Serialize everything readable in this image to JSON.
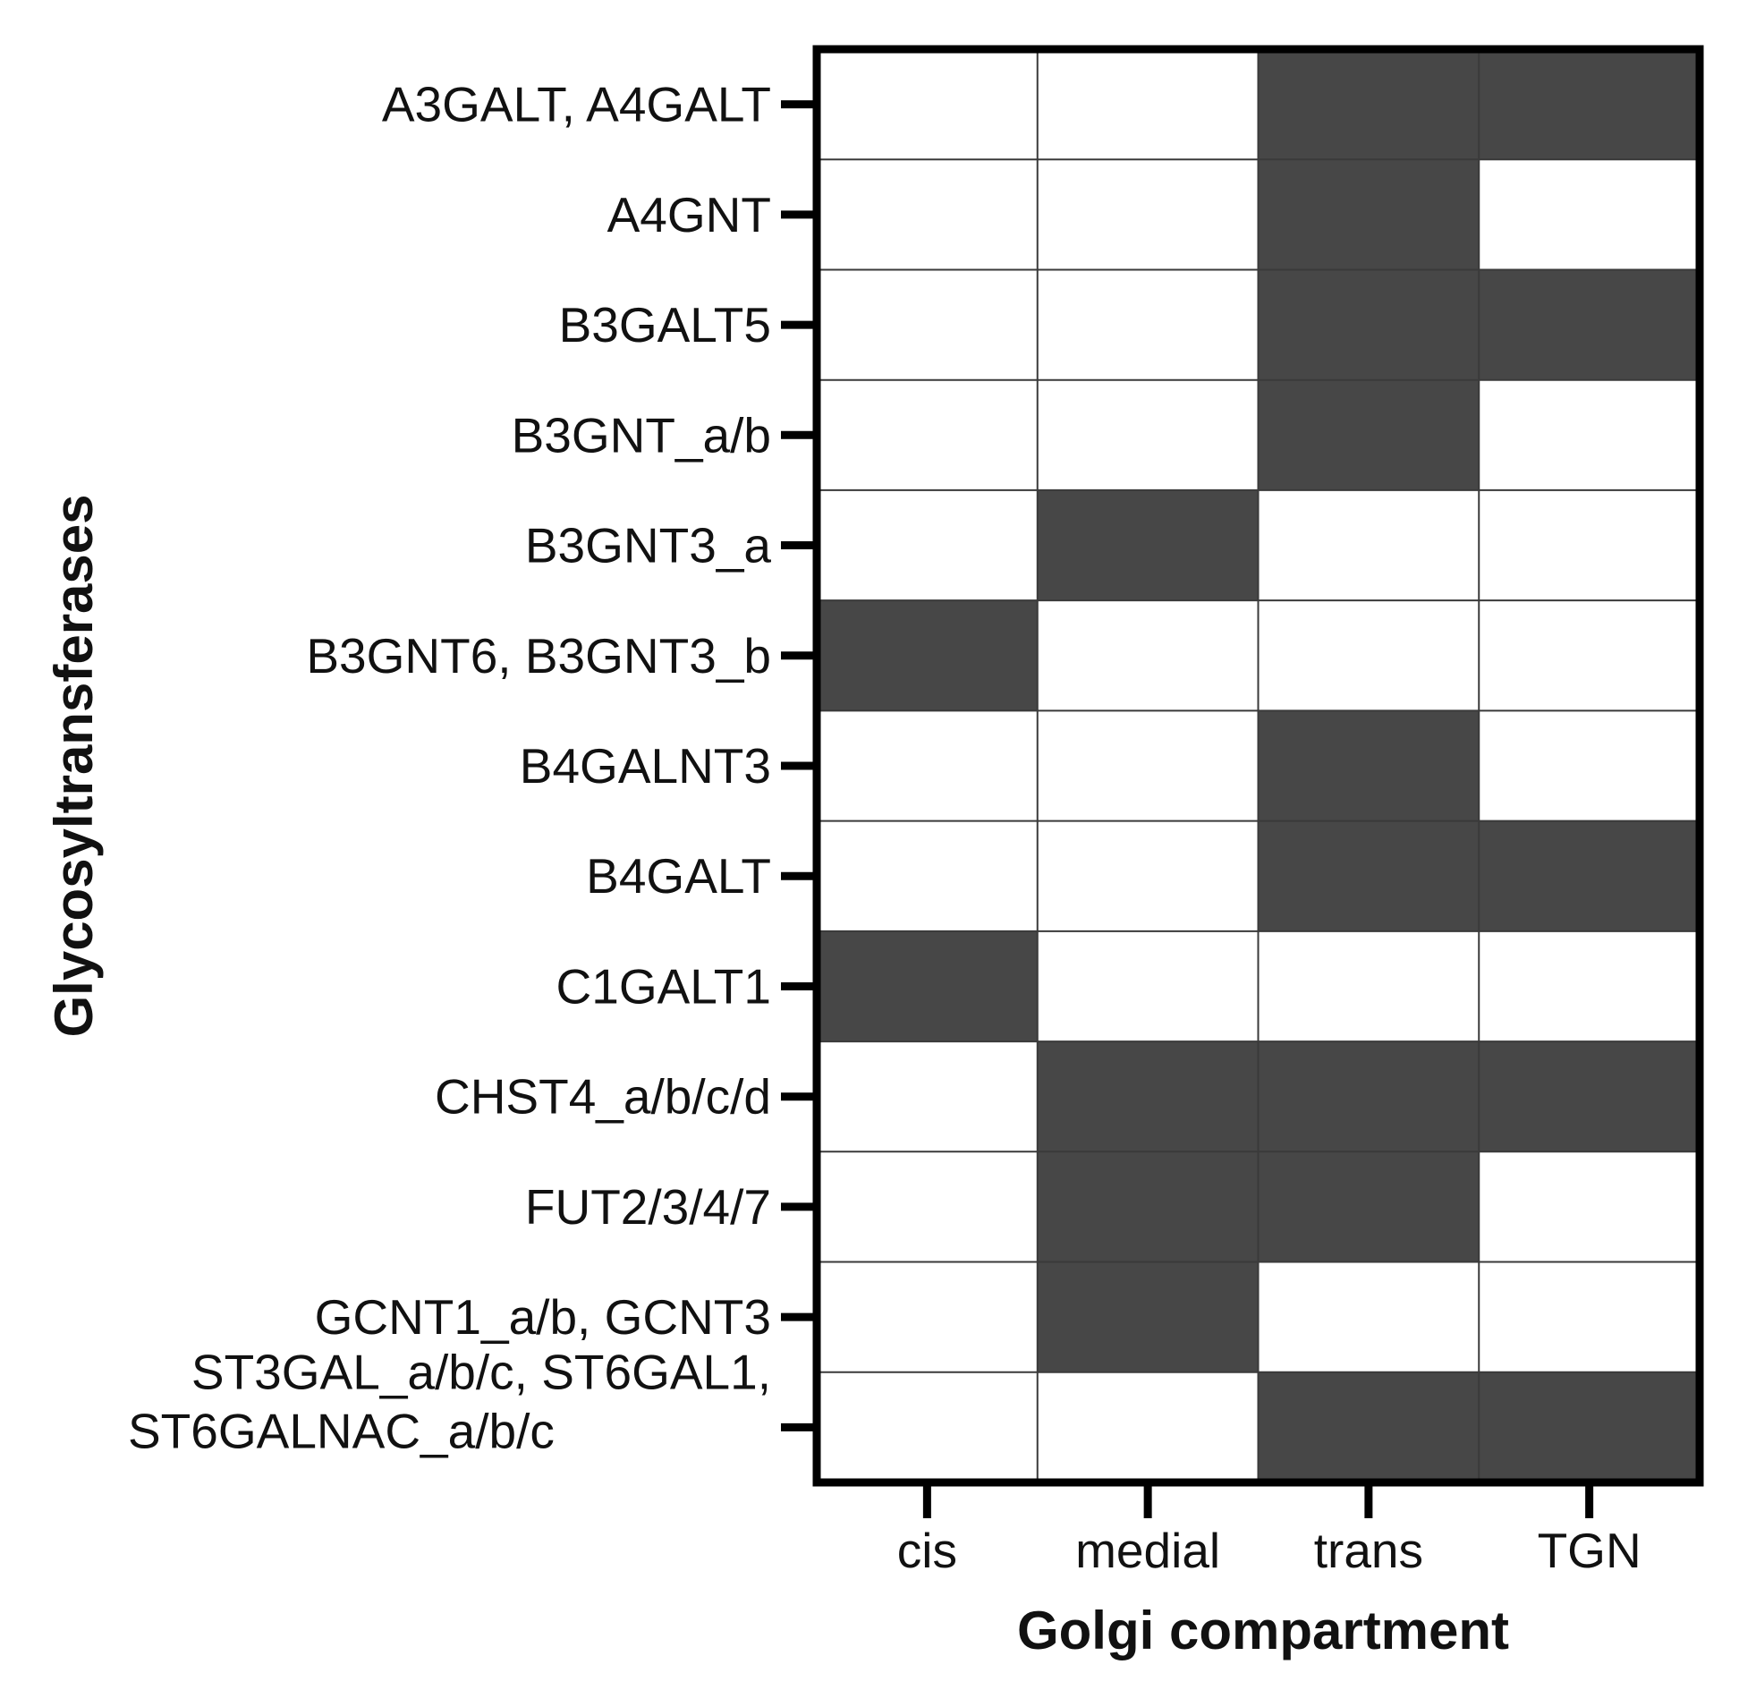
{
  "chart_data": {
    "type": "heatmap",
    "title": "",
    "xlabel": "Golgi compartment",
    "ylabel": "Glycosyltransferases",
    "x_categories": [
      "cis",
      "medial",
      "trans",
      "TGN"
    ],
    "y_categories": [
      [
        "A3GALT, A4GALT"
      ],
      [
        "A4GNT"
      ],
      [
        "B3GALT5"
      ],
      [
        "B3GNT_a/b"
      ],
      [
        "B3GNT3_a"
      ],
      [
        "B3GNT6, B3GNT3_b"
      ],
      [
        "B4GALNT3"
      ],
      [
        "B4GALT"
      ],
      [
        "C1GALT1"
      ],
      [
        "CHST4_a/b/c/d"
      ],
      [
        "FUT2/3/4/7"
      ],
      [
        "GCNT1_a/b, GCNT3"
      ],
      [
        "ST3GAL_a/b/c, ST6GAL1,",
        "ST6GALNAC_a/b/c"
      ]
    ],
    "values": [
      [
        0,
        0,
        1,
        1
      ],
      [
        0,
        0,
        1,
        0
      ],
      [
        0,
        0,
        1,
        1
      ],
      [
        0,
        0,
        1,
        0
      ],
      [
        0,
        1,
        0,
        0
      ],
      [
        1,
        0,
        0,
        0
      ],
      [
        0,
        0,
        1,
        0
      ],
      [
        0,
        0,
        1,
        1
      ],
      [
        1,
        0,
        0,
        0
      ],
      [
        0,
        1,
        1,
        1
      ],
      [
        0,
        1,
        1,
        0
      ],
      [
        0,
        1,
        0,
        0
      ],
      [
        0,
        0,
        1,
        1
      ]
    ],
    "colors": {
      "present": "#474747",
      "absent": "#ffffff",
      "grid": "#3a3a3a",
      "frame": "#000000"
    },
    "grid": true,
    "legend": "none"
  }
}
